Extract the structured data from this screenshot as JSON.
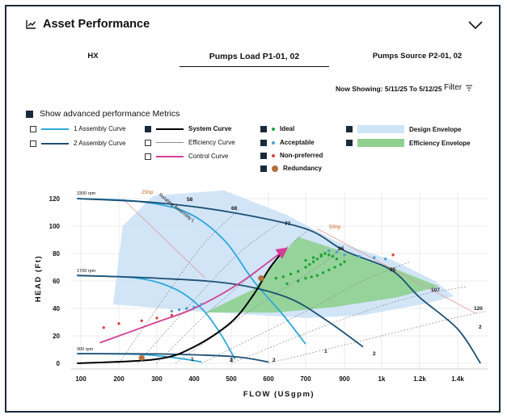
{
  "header": {
    "title": "Asset Performance",
    "icon": "line-chart-icon"
  },
  "tabs": [
    {
      "label": "HX",
      "active": false
    },
    {
      "label": "Pumps Load P1-01, 02",
      "active": true
    },
    {
      "label": "Pumps Source P2-01, 02",
      "active": false
    }
  ],
  "toolbar": {
    "now_showing": "Now Showing: 5/11/25 To 5/12/25",
    "filter_label": "Filter"
  },
  "advanced": {
    "label": "Show advanced performance Metrics",
    "checked": true
  },
  "legend": {
    "assembly1": {
      "label": "1 Assembly Curve",
      "checked": false,
      "color": "#2ea8d8"
    },
    "assembly2": {
      "label": "2 Assembly Curve",
      "checked": false,
      "color": "#1d4f73"
    },
    "system": {
      "label": "System Curve",
      "checked": true,
      "color": "#000000"
    },
    "efficiency": {
      "label": "Efficiency Curve",
      "checked": false,
      "color": "#888888"
    },
    "control": {
      "label": "Control Curve",
      "checked": false,
      "color": "#d43f95"
    },
    "ideal": {
      "label": "Ideal",
      "checked": true,
      "color": "#1fa33a"
    },
    "acceptable": {
      "label": "Acceptable",
      "checked": true,
      "color": "#4a9fd6"
    },
    "nonpreferred": {
      "label": "Non-preferred",
      "checked": true,
      "color": "#d84545"
    },
    "redundancy": {
      "label": "Redundancy",
      "checked": true,
      "color": "#b5703a"
    },
    "design": {
      "label": "Design Envelope",
      "checked": true,
      "color": "#cfe4f7"
    },
    "effenv": {
      "label": "Efficiency Envelope",
      "checked": true,
      "color": "#8fd08f"
    }
  },
  "chart_data": {
    "type": "line",
    "xlabel": "FLOW (USgpm)",
    "ylabel": "HEAD (Ft)",
    "x_ticks": [
      "100",
      "200",
      "300",
      "400",
      "500",
      "600",
      "700",
      "900",
      "1k",
      "1.2k",
      "1.4k"
    ],
    "y_ticks": [
      "0",
      "20",
      "40",
      "60",
      "80",
      "100",
      "120"
    ],
    "ylim": [
      0,
      120
    ],
    "speed_labels": [
      "3300 rpm",
      "1700 rpm",
      "900 rpm"
    ],
    "power_labels": [
      "25hp",
      "50hp"
    ],
    "efficiency_labels": [
      "58",
      "68",
      "77",
      "86",
      "95",
      "107",
      "120"
    ],
    "assembly_label": "Rotating Assembly L",
    "curve_end_labels": [
      "1",
      "2",
      "1",
      "2",
      "1",
      "2",
      "2"
    ],
    "series": [
      {
        "name": "1 Assembly Curve",
        "speed": "3300 rpm",
        "points": [
          [
            90,
            120
          ],
          [
            250,
            118
          ],
          [
            380,
            110
          ],
          [
            480,
            90
          ],
          [
            560,
            60
          ],
          [
            640,
            35
          ],
          [
            700,
            14
          ]
        ]
      },
      {
        "name": "2 Assembly Curve",
        "speed": "3300 rpm",
        "points": [
          [
            90,
            120
          ],
          [
            300,
            117
          ],
          [
            500,
            110
          ],
          [
            700,
            98
          ],
          [
            900,
            82
          ],
          [
            1050,
            68
          ],
          [
            1200,
            48
          ],
          [
            1400,
            25
          ],
          [
            1520,
            0
          ]
        ]
      },
      {
        "name": "1 Assembly Curve",
        "speed": "1700 rpm",
        "points": [
          [
            90,
            64
          ],
          [
            250,
            62
          ],
          [
            350,
            54
          ],
          [
            420,
            40
          ],
          [
            470,
            22
          ],
          [
            510,
            3
          ]
        ]
      },
      {
        "name": "2 Assembly Curve",
        "speed": "1700 rpm",
        "points": [
          [
            90,
            64
          ],
          [
            300,
            62
          ],
          [
            500,
            58
          ],
          [
            650,
            48
          ],
          [
            800,
            32
          ],
          [
            950,
            12
          ]
        ]
      },
      {
        "name": "1 Assembly Curve",
        "speed": "900 rpm",
        "points": [
          [
            90,
            7
          ],
          [
            250,
            6.5
          ],
          [
            350,
            4
          ],
          [
            420,
            1
          ]
        ]
      },
      {
        "name": "2 Assembly Curve",
        "speed": "900 rpm",
        "points": [
          [
            90,
            7
          ],
          [
            300,
            6.8
          ],
          [
            500,
            5
          ],
          [
            600,
            1
          ]
        ]
      },
      {
        "name": "System Curve",
        "points": [
          [
            90,
            0
          ],
          [
            300,
            3
          ],
          [
            400,
            12
          ],
          [
            500,
            30
          ],
          [
            560,
            50
          ],
          [
            600,
            68
          ],
          [
            640,
            82
          ]
        ]
      },
      {
        "name": "Control Curve",
        "points": [
          [
            150,
            15
          ],
          [
            300,
            30
          ],
          [
            400,
            40
          ],
          [
            520,
            58
          ],
          [
            640,
            82
          ]
        ]
      }
    ],
    "design_envelope": [
      [
        185,
        43
      ],
      [
        210,
        100
      ],
      [
        290,
        122
      ],
      [
        480,
        126
      ],
      [
        650,
        108
      ],
      [
        870,
        88
      ],
      [
        1060,
        75
      ],
      [
        1280,
        60
      ],
      [
        1380,
        49
      ],
      [
        1250,
        44
      ],
      [
        950,
        35
      ],
      [
        700,
        33
      ],
      [
        400,
        38
      ]
    ],
    "efficiency_envelope": [
      [
        430,
        37
      ],
      [
        560,
        54
      ],
      [
        630,
        77
      ],
      [
        680,
        92
      ],
      [
        880,
        82
      ],
      [
        1050,
        70
      ],
      [
        1300,
        56
      ],
      [
        1080,
        48
      ],
      [
        850,
        41
      ],
      [
        620,
        37
      ]
    ],
    "ideal_points": [
      [
        620,
        62
      ],
      [
        640,
        63
      ],
      [
        660,
        65
      ],
      [
        680,
        67
      ],
      [
        700,
        70
      ],
      [
        720,
        72
      ],
      [
        740,
        74
      ],
      [
        760,
        76
      ],
      [
        780,
        78
      ],
      [
        800,
        80
      ],
      [
        820,
        79
      ],
      [
        840,
        78
      ],
      [
        860,
        76
      ],
      [
        650,
        58
      ],
      [
        680,
        60
      ],
      [
        700,
        62
      ],
      [
        730,
        63
      ],
      [
        760,
        64
      ],
      [
        790,
        66
      ],
      [
        820,
        68
      ],
      [
        850,
        70
      ],
      [
        880,
        72
      ],
      [
        900,
        74
      ],
      [
        700,
        75
      ],
      [
        740,
        77
      ],
      [
        780,
        79
      ]
    ],
    "acceptable_points": [
      [
        340,
        38
      ],
      [
        360,
        39
      ],
      [
        380,
        40
      ],
      [
        400,
        41
      ],
      [
        420,
        43
      ],
      [
        820,
        82
      ],
      [
        860,
        81
      ],
      [
        900,
        79
      ],
      [
        940,
        78
      ],
      [
        980,
        77
      ],
      [
        1020,
        76
      ]
    ],
    "nonpreferred_points": [
      [
        160,
        26
      ],
      [
        200,
        29
      ],
      [
        260,
        31
      ],
      [
        300,
        33
      ],
      [
        340,
        35
      ],
      [
        1060,
        79
      ]
    ],
    "redundancy_points": [
      [
        260,
        4
      ],
      [
        580,
        62
      ]
    ]
  }
}
